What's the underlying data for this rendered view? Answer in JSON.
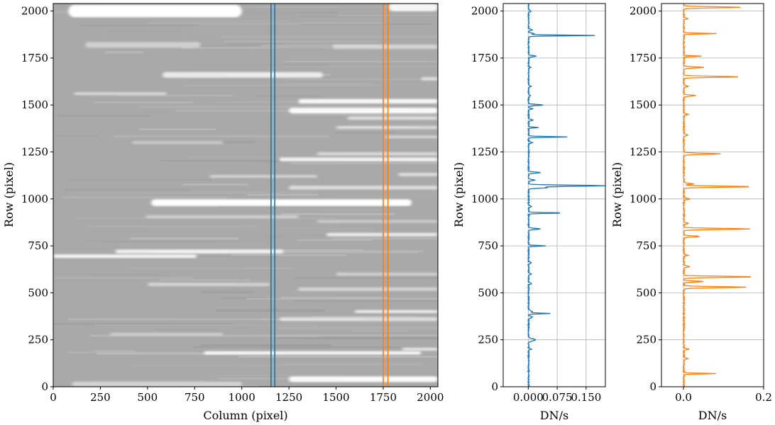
{
  "chart_data": [
    {
      "type": "heatmap",
      "xlabel": "Column (pixel)",
      "ylabel": "Row (pixel)",
      "xlim": [
        0,
        2040
      ],
      "ylim": [
        0,
        2040
      ],
      "xticks": [
        0,
        250,
        500,
        750,
        1000,
        1250,
        1500,
        1750,
        2000
      ],
      "yticks": [
        0,
        250,
        500,
        750,
        1000,
        1250,
        1500,
        1750,
        2000
      ],
      "colormap": "gray",
      "background_color": "#a9a9a9",
      "grid": false,
      "streaks": [
        {
          "row": 2000,
          "x0": 80,
          "x1": 1000,
          "intensity": 1.0,
          "width": 22
        },
        {
          "row": 2020,
          "x0": 1780,
          "x1": 2040,
          "intensity": 0.9,
          "width": 14
        },
        {
          "row": 1820,
          "x0": 170,
          "x1": 780,
          "intensity": 0.45,
          "width": 10
        },
        {
          "row": 1810,
          "x0": 1480,
          "x1": 2040,
          "intensity": 0.5,
          "width": 8
        },
        {
          "row": 1660,
          "x0": 580,
          "x1": 1430,
          "intensity": 0.75,
          "width": 10
        },
        {
          "row": 1640,
          "x0": 1950,
          "x1": 2040,
          "intensity": 0.6,
          "width": 6
        },
        {
          "row": 1560,
          "x0": 110,
          "x1": 600,
          "intensity": 0.55,
          "width": 5
        },
        {
          "row": 1520,
          "x0": 1300,
          "x1": 2040,
          "intensity": 0.9,
          "width": 8
        },
        {
          "row": 1470,
          "x0": 1250,
          "x1": 2040,
          "intensity": 0.95,
          "width": 10
        },
        {
          "row": 1430,
          "x0": 1560,
          "x1": 2040,
          "intensity": 0.6,
          "width": 6
        },
        {
          "row": 1380,
          "x0": 1500,
          "x1": 2040,
          "intensity": 0.55,
          "width": 6
        },
        {
          "row": 1330,
          "x0": 1760,
          "x1": 2040,
          "intensity": 0.5,
          "width": 5
        },
        {
          "row": 1300,
          "x0": 420,
          "x1": 900,
          "intensity": 0.45,
          "width": 5
        },
        {
          "row": 1240,
          "x0": 1400,
          "x1": 2040,
          "intensity": 0.55,
          "width": 6
        },
        {
          "row": 1210,
          "x0": 1200,
          "x1": 2040,
          "intensity": 0.85,
          "width": 7
        },
        {
          "row": 1130,
          "x0": 1830,
          "x1": 2040,
          "intensity": 0.6,
          "width": 6
        },
        {
          "row": 1120,
          "x0": 830,
          "x1": 1400,
          "intensity": 0.5,
          "width": 5
        },
        {
          "row": 1060,
          "x0": 1250,
          "x1": 2040,
          "intensity": 0.6,
          "width": 7
        },
        {
          "row": 980,
          "x0": 520,
          "x1": 1900,
          "intensity": 1.0,
          "width": 12
        },
        {
          "row": 905,
          "x0": 490,
          "x1": 1300,
          "intensity": 0.45,
          "width": 5
        },
        {
          "row": 880,
          "x0": 1400,
          "x1": 2040,
          "intensity": 0.4,
          "width": 5
        },
        {
          "row": 810,
          "x0": 1450,
          "x1": 2040,
          "intensity": 0.75,
          "width": 6
        },
        {
          "row": 720,
          "x0": 330,
          "x1": 1220,
          "intensity": 0.8,
          "width": 7
        },
        {
          "row": 695,
          "x0": 0,
          "x1": 760,
          "intensity": 0.9,
          "width": 6
        },
        {
          "row": 600,
          "x0": 1500,
          "x1": 2040,
          "intensity": 0.45,
          "width": 6
        },
        {
          "row": 545,
          "x0": 500,
          "x1": 1150,
          "intensity": 0.5,
          "width": 6
        },
        {
          "row": 520,
          "x0": 1300,
          "x1": 2040,
          "intensity": 0.5,
          "width": 6
        },
        {
          "row": 400,
          "x0": 1600,
          "x1": 2040,
          "intensity": 0.8,
          "width": 5
        },
        {
          "row": 360,
          "x0": 1200,
          "x1": 2040,
          "intensity": 0.6,
          "width": 7
        },
        {
          "row": 280,
          "x0": 300,
          "x1": 900,
          "intensity": 0.4,
          "width": 5
        },
        {
          "row": 200,
          "x0": 1850,
          "x1": 2040,
          "intensity": 0.7,
          "width": 5
        },
        {
          "row": 180,
          "x0": 800,
          "x1": 1950,
          "intensity": 0.9,
          "width": 6
        },
        {
          "row": 40,
          "x0": 1250,
          "x1": 2040,
          "intensity": 0.95,
          "width": 10
        },
        {
          "row": 15,
          "x0": 100,
          "x1": 1000,
          "intensity": 0.5,
          "width": 8
        }
      ],
      "vertical_lines": [
        {
          "x": 1155,
          "color": "#1f77b4"
        },
        {
          "x": 1175,
          "color": "#1f77b4"
        },
        {
          "x": 1750,
          "color": "#ff7f0e"
        },
        {
          "x": 1775,
          "color": "#ff7f0e"
        }
      ]
    },
    {
      "type": "line",
      "xlabel": "DN/s",
      "ylabel": "Row (pixel)",
      "xlim": [
        -0.065,
        0.2
      ],
      "ylim": [
        0,
        2040
      ],
      "xticks": [
        0.0,
        0.075,
        0.15
      ],
      "xtick_labels": [
        "0.000",
        "0.075",
        "0.150"
      ],
      "yticks": [
        0,
        250,
        500,
        750,
        1000,
        1250,
        1500,
        1750,
        2000
      ],
      "grid": true,
      "color": "#1f77b4",
      "baseline": 0.001,
      "peaks": [
        {
          "row": 2000,
          "value": 0.006,
          "width": 4
        },
        {
          "row": 1900,
          "value": 0.01,
          "width": 3
        },
        {
          "row": 1880,
          "value": 0.012,
          "width": 3
        },
        {
          "row": 1870,
          "value": 0.17,
          "width": 2
        },
        {
          "row": 1760,
          "value": 0.02,
          "width": 3
        },
        {
          "row": 1700,
          "value": 0.006,
          "width": 3
        },
        {
          "row": 1600,
          "value": 0.006,
          "width": 3
        },
        {
          "row": 1550,
          "value": 0.005,
          "width": 3
        },
        {
          "row": 1500,
          "value": 0.038,
          "width": 3
        },
        {
          "row": 1480,
          "value": 0.01,
          "width": 3
        },
        {
          "row": 1420,
          "value": 0.012,
          "width": 3
        },
        {
          "row": 1380,
          "value": 0.025,
          "width": 2
        },
        {
          "row": 1330,
          "value": 0.1,
          "width": 2
        },
        {
          "row": 1300,
          "value": 0.01,
          "width": 3
        },
        {
          "row": 1140,
          "value": 0.03,
          "width": 3
        },
        {
          "row": 1100,
          "value": 0.015,
          "width": 3
        },
        {
          "row": 1070,
          "value": 0.2,
          "width": 3
        },
        {
          "row": 1060,
          "value": 0.05,
          "width": 3
        },
        {
          "row": 960,
          "value": 0.008,
          "width": 3
        },
        {
          "row": 925,
          "value": 0.09,
          "width": 2
        },
        {
          "row": 840,
          "value": 0.03,
          "width": 3
        },
        {
          "row": 750,
          "value": 0.045,
          "width": 2
        },
        {
          "row": 660,
          "value": 0.006,
          "width": 3
        },
        {
          "row": 600,
          "value": 0.008,
          "width": 3
        },
        {
          "row": 550,
          "value": 0.008,
          "width": 3
        },
        {
          "row": 400,
          "value": 0.01,
          "width": 4
        },
        {
          "row": 390,
          "value": 0.055,
          "width": 2
        },
        {
          "row": 370,
          "value": 0.01,
          "width": 4
        },
        {
          "row": 250,
          "value": 0.018,
          "width": 6
        },
        {
          "row": 200,
          "value": 0.006,
          "width": 3
        }
      ]
    },
    {
      "type": "line",
      "xlabel": "DN/s",
      "ylabel": "Row (pixel)",
      "xlim": [
        -0.055,
        0.2
      ],
      "ylim": [
        0,
        2040
      ],
      "xticks": [
        0.0,
        0.2
      ],
      "xtick_labels": [
        "0.0",
        "0.2"
      ],
      "yticks": [
        0,
        250,
        500,
        750,
        1000,
        1250,
        1500,
        1750,
        2000
      ],
      "grid": true,
      "color": "#ff7f0e",
      "baseline": 0.001,
      "peaks": [
        {
          "row": 2020,
          "value": 0.14,
          "width": 3
        },
        {
          "row": 1960,
          "value": 0.01,
          "width": 3
        },
        {
          "row": 1880,
          "value": 0.08,
          "width": 2
        },
        {
          "row": 1760,
          "value": 0.045,
          "width": 2
        },
        {
          "row": 1700,
          "value": 0.05,
          "width": 3
        },
        {
          "row": 1650,
          "value": 0.135,
          "width": 3
        },
        {
          "row": 1600,
          "value": 0.01,
          "width": 3
        },
        {
          "row": 1550,
          "value": 0.03,
          "width": 3
        },
        {
          "row": 1450,
          "value": 0.01,
          "width": 3
        },
        {
          "row": 1340,
          "value": 0.01,
          "width": 3
        },
        {
          "row": 1240,
          "value": 0.09,
          "width": 3
        },
        {
          "row": 1080,
          "value": 0.025,
          "width": 3
        },
        {
          "row": 1065,
          "value": 0.17,
          "width": 3
        },
        {
          "row": 1000,
          "value": 0.015,
          "width": 3
        },
        {
          "row": 870,
          "value": 0.012,
          "width": 3
        },
        {
          "row": 840,
          "value": 0.165,
          "width": 3
        },
        {
          "row": 800,
          "value": 0.04,
          "width": 3
        },
        {
          "row": 700,
          "value": 0.01,
          "width": 3
        },
        {
          "row": 640,
          "value": 0.015,
          "width": 3
        },
        {
          "row": 585,
          "value": 0.175,
          "width": 3
        },
        {
          "row": 560,
          "value": 0.05,
          "width": 3
        },
        {
          "row": 530,
          "value": 0.155,
          "width": 3
        },
        {
          "row": 200,
          "value": 0.012,
          "width": 3
        },
        {
          "row": 150,
          "value": 0.01,
          "width": 3
        },
        {
          "row": 70,
          "value": 0.08,
          "width": 2
        }
      ]
    }
  ]
}
